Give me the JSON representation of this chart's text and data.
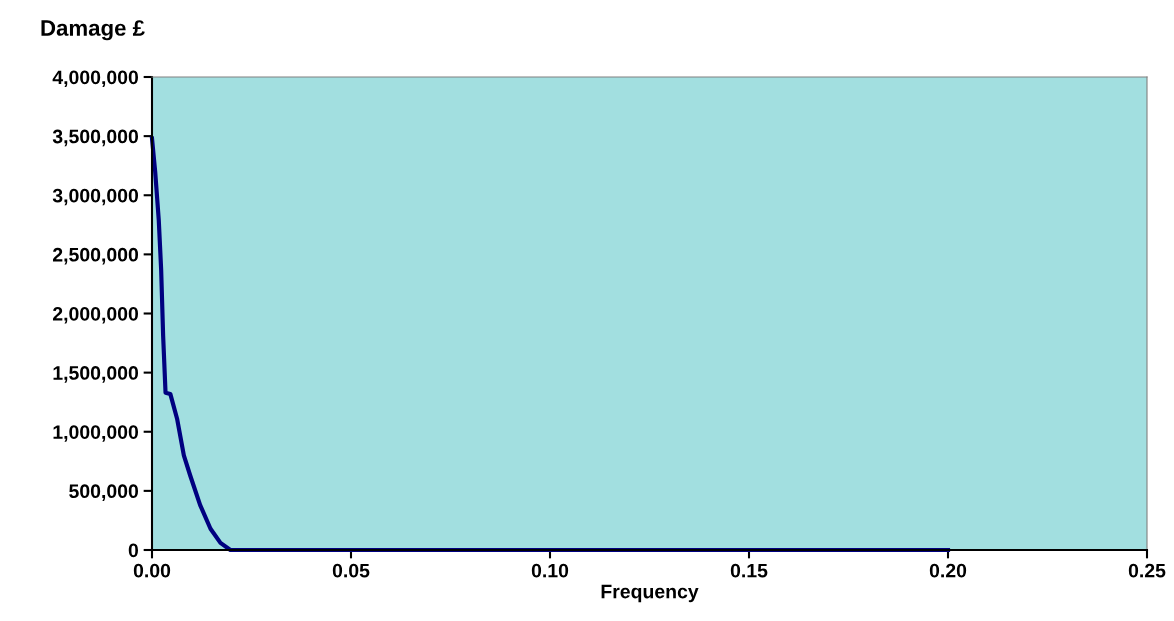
{
  "chart_data": {
    "type": "line",
    "ylabel": "Damage £",
    "xlabel": "Frequency",
    "series": [
      {
        "color": "#000080",
        "x": [
          0,
          0.0008,
          0.0017,
          0.0023,
          0.0028,
          0.0034,
          0.0046,
          0.0063,
          0.008,
          0.0096,
          0.0121,
          0.0147,
          0.0172,
          0.0197,
          0.05,
          0.1,
          0.15,
          0.2
        ],
        "values": [
          3480000,
          3200000,
          2790000,
          2370000,
          1810000,
          1330000,
          1320000,
          1110000,
          800000,
          630000,
          380000,
          180000,
          60000,
          0,
          0,
          0,
          0,
          0
        ]
      }
    ],
    "xlim": [
      0,
      0.25
    ],
    "xticks": [
      {
        "value": 0,
        "label": "0.00"
      },
      {
        "value": 0.05,
        "label": "0.05"
      },
      {
        "value": 0.1,
        "label": "0.10"
      },
      {
        "value": 0.15,
        "label": "0.15"
      },
      {
        "value": 0.2,
        "label": "0.20"
      },
      {
        "value": 0.25,
        "label": "0.25"
      }
    ],
    "ylim": [
      0,
      4000000
    ],
    "yticks": [
      {
        "value": 0,
        "label": "0"
      },
      {
        "value": 500000,
        "label": "500,000"
      },
      {
        "value": 1000000,
        "label": "1,000,000"
      },
      {
        "value": 1500000,
        "label": "1,500,000"
      },
      {
        "value": 2000000,
        "label": "2,000,000"
      },
      {
        "value": 2500000,
        "label": "2,500,000"
      },
      {
        "value": 3000000,
        "label": "3,000,000"
      },
      {
        "value": 3500000,
        "label": "3,500,000"
      },
      {
        "value": 4000000,
        "label": "4,000,000"
      }
    ],
    "grid": false,
    "legend": false,
    "marker": "none",
    "line_style": "solid"
  }
}
